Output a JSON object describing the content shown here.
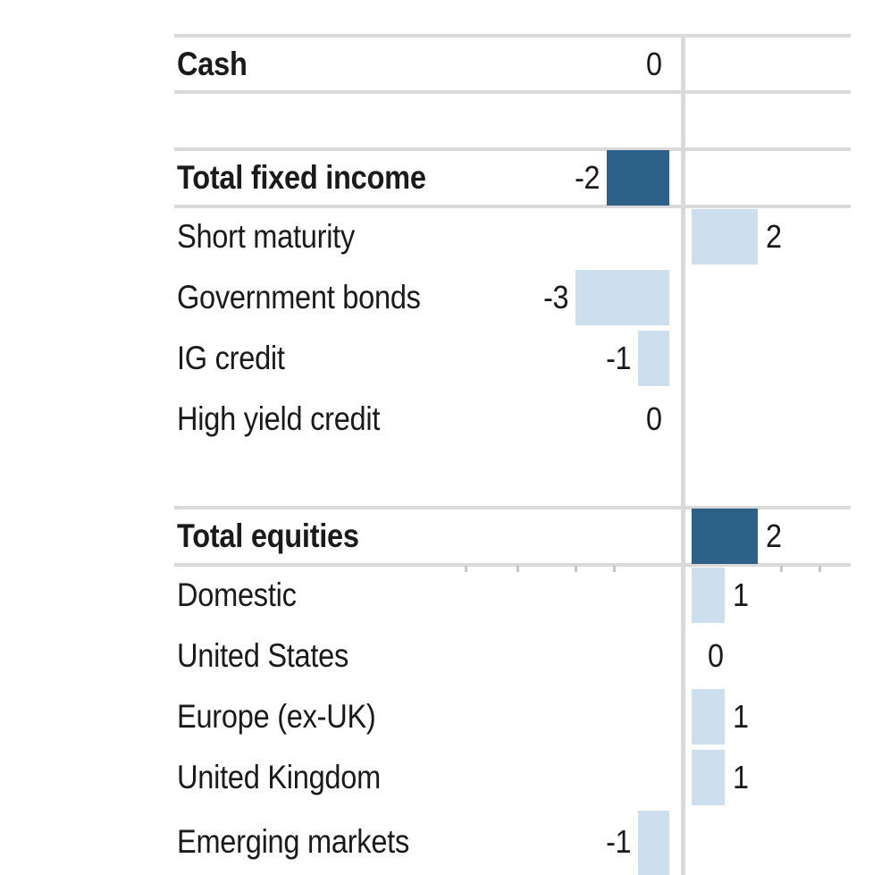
{
  "chart_data": {
    "type": "bar",
    "orientation": "horizontal",
    "title": "",
    "xlabel": "",
    "ylabel": "",
    "xlim": [
      -5,
      5
    ],
    "legend": "none",
    "grid": "horizontal-row-separators",
    "categories": [
      "Cash",
      "Total fixed income",
      "Short maturity",
      "Government bonds",
      "IG credit",
      "High yield credit",
      "Total equities",
      "Domestic",
      "United States",
      "Europe (ex-UK)",
      "United Kingdom",
      "Emerging markets"
    ],
    "values": [
      0,
      -2,
      2,
      -3,
      -1,
      0,
      2,
      1,
      0,
      1,
      1,
      -1
    ],
    "colors": {
      "total_bar": "#2d6187",
      "item_bar": "#cddfed",
      "gridline": "#d9d9d9",
      "axis_line": "#d9d9d9",
      "text": "#1a1a1a"
    }
  },
  "rows": [
    {
      "kind": "item",
      "bold": true,
      "label": "Cash",
      "value": 0,
      "display": "0",
      "label_side": "left",
      "bar": false
    },
    {
      "kind": "spacer",
      "bold": false,
      "label": "",
      "value": null,
      "display": "",
      "label_side": "none",
      "bar": false
    },
    {
      "kind": "total",
      "bold": true,
      "label": "Total fixed income",
      "value": -2,
      "display": "-2",
      "label_side": "left",
      "bar": true
    },
    {
      "kind": "item",
      "bold": false,
      "label": "Short maturity",
      "value": 2,
      "display": "2",
      "label_side": "right",
      "bar": true
    },
    {
      "kind": "item",
      "bold": false,
      "label": "Government bonds",
      "value": -3,
      "display": "-3",
      "label_side": "left",
      "bar": true
    },
    {
      "kind": "item",
      "bold": false,
      "label": "IG credit",
      "value": -1,
      "display": "-1",
      "label_side": "left",
      "bar": true
    },
    {
      "kind": "item",
      "bold": false,
      "label": "High yield credit",
      "value": 0,
      "display": "0",
      "label_side": "left",
      "bar": false
    },
    {
      "kind": "spacer",
      "bold": false,
      "label": "",
      "value": null,
      "display": "",
      "label_side": "none",
      "bar": false
    },
    {
      "kind": "total",
      "bold": true,
      "label": "Total equities",
      "value": 2,
      "display": "2",
      "label_side": "right",
      "bar": true
    },
    {
      "kind": "item",
      "bold": false,
      "label": "Domestic",
      "value": 1,
      "display": "1",
      "label_side": "right",
      "bar": true
    },
    {
      "kind": "item",
      "bold": false,
      "label": "United States",
      "value": 0,
      "display": "0",
      "label_side": "right",
      "bar": false
    },
    {
      "kind": "item",
      "bold": false,
      "label": "Europe (ex-UK)",
      "value": 1,
      "display": "1",
      "label_side": "right",
      "bar": true
    },
    {
      "kind": "item",
      "bold": false,
      "label": "United Kingdom",
      "value": 1,
      "display": "1",
      "label_side": "right",
      "bar": true
    },
    {
      "kind": "item",
      "bold": false,
      "label": "Emerging markets",
      "value": -1,
      "display": "-1",
      "label_side": "left",
      "bar": true
    }
  ]
}
